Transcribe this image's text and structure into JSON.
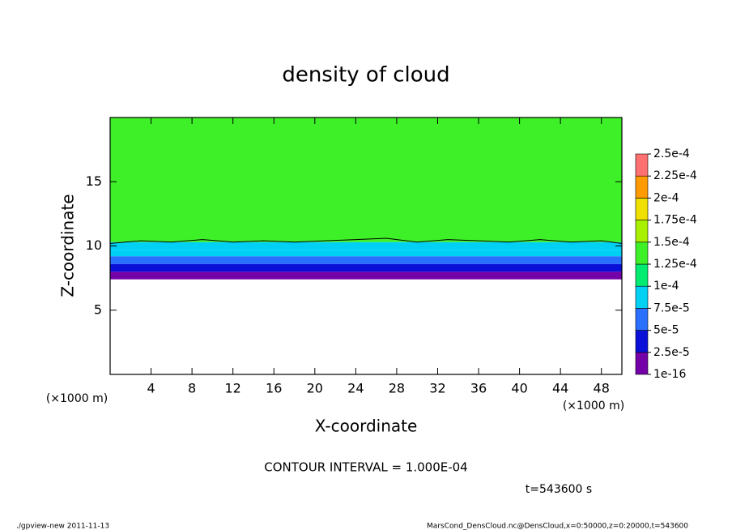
{
  "chart_data": {
    "type": "contour",
    "title": "density of cloud",
    "x_label": "X-coordinate",
    "y_label": "Z-coordinate",
    "x_unit": "(×1000 m)",
    "y_unit": "(×1000 m)",
    "note": "CONTOUR INTERVAL = 1.000E-04",
    "time": "t=543600 s",
    "footer_left": "./gpview-new   2011-11-13",
    "footer_right": "MarsCond_DensCloud.nc@DensCloud,x=0:50000,z=0:20000,t=543600",
    "xlim": [
      0,
      50
    ],
    "ylim": [
      0,
      20
    ],
    "xticks": [
      4,
      8,
      12,
      16,
      20,
      24,
      28,
      32,
      36,
      40,
      44,
      48
    ],
    "yticks": [
      5,
      10,
      15
    ],
    "profile": {
      "z": [
        7.4,
        8.0,
        8.6,
        9.2,
        9.7,
        10.3,
        20
      ],
      "values": [
        1e-05,
        3e-05,
        6e-05,
        8e-05,
        9e-05,
        0.00013
      ]
    },
    "contour_line": {
      "x": [
        0,
        3,
        6,
        9,
        12,
        15,
        18,
        21,
        24,
        27,
        30,
        33,
        36,
        39,
        42,
        45,
        48,
        50
      ],
      "z": [
        10.2,
        10.4,
        10.3,
        10.5,
        10.3,
        10.4,
        10.3,
        10.4,
        10.5,
        10.6,
        10.3,
        10.5,
        10.4,
        10.3,
        10.5,
        10.3,
        10.4,
        10.2
      ]
    },
    "colorbar": {
      "levels": [
        {
          "value": 1e-16,
          "label": "1e-16"
        },
        {
          "value": 2.5e-05,
          "label": "2.5e-5"
        },
        {
          "value": 5e-05,
          "label": "5e-5"
        },
        {
          "value": 7.5e-05,
          "label": "7.5e-5"
        },
        {
          "value": 0.0001,
          "label": "1e-4"
        },
        {
          "value": 0.000125,
          "label": "1.25e-4"
        },
        {
          "value": 0.00015,
          "label": "1.5e-4"
        },
        {
          "value": 0.000175,
          "label": "1.75e-4"
        },
        {
          "value": 0.0002,
          "label": "2e-4"
        },
        {
          "value": 0.000225,
          "label": "2.25e-4"
        },
        {
          "value": 0.00025,
          "label": "2.5e-4"
        }
      ],
      "colors": [
        "#7400a8",
        "#0a10d8",
        "#2a70ff",
        "#00d0f4",
        "#00ec70",
        "#3ef028",
        "#a8f000",
        "#f0e000",
        "#ff9a00",
        "#ff7070"
      ]
    }
  }
}
